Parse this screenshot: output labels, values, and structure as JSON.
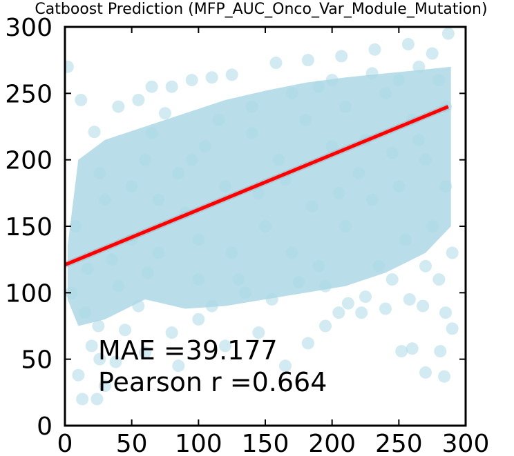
{
  "chart_data": {
    "type": "scatter",
    "title": "Catboost Prediction (MFP_AUC_Onco_Var_Module_Mutation)",
    "xlabel": "",
    "ylabel": "",
    "xlim": [
      0,
      300
    ],
    "ylim": [
      0,
      300
    ],
    "x_ticks": [
      0,
      50,
      100,
      150,
      200,
      250,
      300
    ],
    "y_ticks": [
      0,
      50,
      100,
      150,
      200,
      250,
      300
    ],
    "x_tick_labels": [
      "0",
      "50",
      "100",
      "150",
      "200",
      "250",
      "300"
    ],
    "y_tick_labels": [
      "0",
      "50",
      "100",
      "150",
      "200",
      "250",
      "300"
    ],
    "grid": false,
    "series": [
      {
        "name": "predictions",
        "kind": "scatter",
        "color": "#add8e6",
        "points": [
          [
            2,
            270
          ],
          [
            10,
            38
          ],
          [
            13,
            20
          ],
          [
            24,
            20
          ],
          [
            26,
            50
          ],
          [
            30,
            30
          ],
          [
            12,
            245
          ],
          [
            17,
            118
          ],
          [
            22,
            221
          ],
          [
            26,
            190
          ],
          [
            55,
            90
          ],
          [
            62,
            115
          ],
          [
            65,
            255
          ],
          [
            80,
            255
          ],
          [
            95,
            260
          ],
          [
            110,
            262
          ],
          [
            125,
            264
          ],
          [
            158,
            273
          ],
          [
            182,
            275
          ],
          [
            207,
            278
          ],
          [
            232,
            283
          ],
          [
            257,
            287
          ],
          [
            287,
            295
          ],
          [
            20,
            60
          ],
          [
            38,
            48
          ],
          [
            45,
            72
          ],
          [
            40,
            105
          ],
          [
            60,
            200
          ],
          [
            70,
            170
          ],
          [
            90,
            160
          ],
          [
            100,
            140
          ],
          [
            120,
            180
          ],
          [
            140,
            220
          ],
          [
            160,
            200
          ],
          [
            180,
            230
          ],
          [
            200,
            210
          ],
          [
            220,
            190
          ],
          [
            240,
            250
          ],
          [
            260,
            230
          ],
          [
            280,
            260
          ],
          [
            110,
            90
          ],
          [
            130,
            110
          ],
          [
            150,
            150
          ],
          [
            170,
            130
          ],
          [
            190,
            120
          ],
          [
            210,
            150
          ],
          [
            230,
            170
          ],
          [
            250,
            180
          ],
          [
            270,
            200
          ],
          [
            285,
            240
          ],
          [
            80,
            70
          ],
          [
            100,
            80
          ],
          [
            120,
            60
          ],
          [
            145,
            70
          ],
          [
            165,
            45
          ],
          [
            182,
            62
          ],
          [
            195,
            75
          ],
          [
            205,
            85
          ],
          [
            212,
            92
          ],
          [
            222,
            85
          ],
          [
            225,
            97
          ],
          [
            240,
            88
          ],
          [
            258,
            95
          ],
          [
            268,
            90
          ],
          [
            285,
            85
          ],
          [
            252,
            56
          ],
          [
            260,
            58
          ],
          [
            281,
            56
          ],
          [
            290,
            73
          ],
          [
            284,
            37
          ],
          [
            270,
            40
          ],
          [
            8,
            150
          ],
          [
            5,
            100
          ],
          [
            30,
            170
          ],
          [
            50,
            140
          ],
          [
            75,
            235
          ],
          [
            100,
            110
          ],
          [
            135,
            100
          ],
          [
            155,
            95
          ],
          [
            175,
            108
          ],
          [
            235,
            120
          ],
          [
            255,
            140
          ],
          [
            275,
            150
          ],
          [
            290,
            130
          ],
          [
            60,
            55
          ],
          [
            85,
            45
          ],
          [
            140,
            240
          ],
          [
            200,
            260
          ],
          [
            230,
            265
          ],
          [
            265,
            270
          ],
          [
            40,
            240
          ],
          [
            55,
            245
          ],
          [
            195,
            105
          ],
          [
            245,
            110
          ],
          [
            35,
            125
          ],
          [
            15,
            85
          ],
          [
            25,
            75
          ],
          [
            95,
            200
          ],
          [
            115,
            230
          ],
          [
            210,
            240
          ],
          [
            250,
            260
          ],
          [
            275,
            280
          ],
          [
            125,
            130
          ],
          [
            145,
            175
          ],
          [
            165,
            185
          ],
          [
            185,
            165
          ],
          [
            205,
            175
          ],
          [
            225,
            215
          ],
          [
            245,
            205
          ],
          [
            265,
            215
          ],
          [
            70,
            130
          ],
          [
            85,
            190
          ],
          [
            105,
            210
          ],
          [
            50,
            180
          ],
          [
            65,
            220
          ],
          [
            285,
            180
          ],
          [
            280,
            110
          ],
          [
            270,
            120
          ],
          [
            170,
            250
          ],
          [
            190,
            255
          ]
        ]
      },
      {
        "name": "regression fit",
        "kind": "line",
        "color": "#ff0000",
        "x": [
          0,
          287
        ],
        "y": [
          121,
          240
        ]
      }
    ],
    "annotations": [
      "MAE =39.177",
      "Pearson r =0.664"
    ]
  }
}
